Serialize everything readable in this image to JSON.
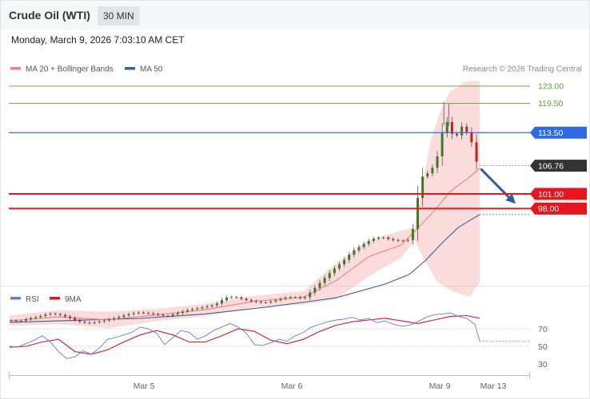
{
  "header": {
    "title": "Crude Oil (WTI)",
    "timeframe": "30 MIN",
    "timestamp": "Monday, March 9, 2026 7:03:10 AM CET"
  },
  "copyright": "Research © 2026 Trading Central",
  "colors": {
    "resistance_green": "#5aa532",
    "pivot_blue": "#2d6be4",
    "support_red": "#e8141e",
    "current_price": "#333333",
    "ma20_band": "#f08080",
    "ma50": "#3a5f9e",
    "rsi": "#5b7fe0",
    "rsi_ma": "#e8141e",
    "arrow": "#2d5fa5"
  },
  "chart_data": [
    {
      "type": "line",
      "kind": "candlestick",
      "legend": [
        {
          "name": "MA 20 + Bollinger Bands",
          "color": "#f08080"
        },
        {
          "name": "MA 50",
          "color": "#3a5f9e"
        }
      ],
      "legend_position": "top-left",
      "levels": [
        {
          "value": "123.00",
          "role": "resistance",
          "color": "#5aa532"
        },
        {
          "value": "119.50",
          "role": "resistance",
          "color": "#5aa532"
        },
        {
          "value": "113.50",
          "role": "pivot",
          "color": "#2d6be4"
        },
        {
          "value": "106.76",
          "role": "current",
          "color": "#333333"
        },
        {
          "value": "101.00",
          "role": "support",
          "color": "#e8141e"
        },
        {
          "value": "98.00",
          "role": "support",
          "color": "#e8141e"
        }
      ],
      "x_ticks": [
        "Mar 5",
        "Mar 6",
        "Mar 9",
        "Mar 13"
      ],
      "price_path": [
        [
          0,
          75.2
        ],
        [
          6,
          75.0
        ],
        [
          12,
          75.6
        ],
        [
          18,
          76.0
        ],
        [
          24,
          76.6
        ],
        [
          30,
          76.4
        ],
        [
          36,
          75.8
        ],
        [
          42,
          75.0
        ],
        [
          48,
          74.6
        ],
        [
          54,
          74.9
        ],
        [
          60,
          75.3
        ],
        [
          66,
          75.8
        ],
        [
          72,
          76.4
        ],
        [
          78,
          76.8
        ],
        [
          84,
          76.7
        ],
        [
          90,
          76.4
        ],
        [
          96,
          76.0
        ],
        [
          102,
          76.6
        ],
        [
          108,
          77.2
        ],
        [
          114,
          77.6
        ],
        [
          120,
          78.0
        ],
        [
          126,
          78.4
        ],
        [
          132,
          79.8
        ],
        [
          138,
          80.0
        ],
        [
          144,
          79.4
        ],
        [
          150,
          79.0
        ],
        [
          156,
          78.8
        ],
        [
          162,
          79.2
        ],
        [
          168,
          79.8
        ],
        [
          174,
          80.0
        ],
        [
          180,
          79.6
        ],
        [
          186,
          81.5
        ],
        [
          192,
          83.5
        ],
        [
          198,
          85.5
        ],
        [
          204,
          87.2
        ],
        [
          210,
          89.3
        ],
        [
          216,
          90.6
        ],
        [
          222,
          91.8
        ],
        [
          228,
          92.2
        ],
        [
          234,
          91.6
        ],
        [
          240,
          91.4
        ],
        [
          246,
          91.7
        ],
        [
          252,
          104.4
        ],
        [
          255,
          104.8
        ],
        [
          258,
          106.0
        ],
        [
          261,
          107.0
        ],
        [
          264,
          112.0
        ],
        [
          267,
          116.5
        ],
        [
          270,
          114.0
        ],
        [
          273,
          111.8
        ],
        [
          276,
          115.2
        ],
        [
          279,
          113.8
        ],
        [
          282,
          113.3
        ],
        [
          285,
          108.0
        ],
        [
          288,
          106.8
        ]
      ],
      "ma20_path": [
        [
          0,
          75.1
        ],
        [
          30,
          75.9
        ],
        [
          60,
          75.3
        ],
        [
          90,
          76.3
        ],
        [
          120,
          77.4
        ],
        [
          150,
          79.1
        ],
        [
          180,
          79.9
        ],
        [
          200,
          83.3
        ],
        [
          220,
          88.2
        ],
        [
          240,
          90.6
        ],
        [
          250,
          94.0
        ],
        [
          260,
          97.5
        ],
        [
          270,
          101.5
        ],
        [
          280,
          104.0
        ],
        [
          288,
          106.2
        ]
      ],
      "ma50_path": [
        [
          0,
          74.8
        ],
        [
          40,
          75.2
        ],
        [
          80,
          75.6
        ],
        [
          120,
          76.5
        ],
        [
          160,
          78.0
        ],
        [
          200,
          79.8
        ],
        [
          230,
          82.6
        ],
        [
          245,
          84.6
        ],
        [
          255,
          87.5
        ],
        [
          265,
          91.0
        ],
        [
          275,
          94.2
        ],
        [
          288,
          96.8
        ]
      ],
      "band_upper": [
        [
          0,
          76.2
        ],
        [
          30,
          77.3
        ],
        [
          60,
          77.0
        ],
        [
          90,
          77.5
        ],
        [
          120,
          78.6
        ],
        [
          150,
          80.2
        ],
        [
          180,
          81.2
        ],
        [
          200,
          86.8
        ],
        [
          220,
          91.6
        ],
        [
          240,
          93.5
        ],
        [
          248,
          94.2
        ],
        [
          252,
          101.0
        ],
        [
          258,
          112.0
        ],
        [
          264,
          118.0
        ],
        [
          270,
          122.0
        ],
        [
          280,
          124.0
        ],
        [
          288,
          124.0
        ]
      ],
      "band_lower": [
        [
          0,
          74.1
        ],
        [
          30,
          74.4
        ],
        [
          60,
          73.6
        ],
        [
          90,
          75.0
        ],
        [
          120,
          76.1
        ],
        [
          150,
          77.9
        ],
        [
          180,
          78.4
        ],
        [
          200,
          79.5
        ],
        [
          220,
          84.2
        ],
        [
          240,
          88.0
        ],
        [
          248,
          91.5
        ],
        [
          255,
          87.0
        ],
        [
          262,
          83.0
        ],
        [
          272,
          81.0
        ],
        [
          282,
          80.0
        ],
        [
          288,
          83.0
        ]
      ],
      "projection": {
        "from": [
          289,
          106.0
        ],
        "to": [
          310,
          99.0
        ]
      }
    },
    {
      "type": "line",
      "legend": [
        {
          "name": "RSI",
          "color": "#5b7fe0"
        },
        {
          "name": "9MA",
          "color": "#e8141e"
        }
      ],
      "legend_position": "top-left",
      "y_ticks": [
        "70",
        "50",
        "30"
      ],
      "rsi": [
        [
          0,
          50
        ],
        [
          5,
          49
        ],
        [
          10,
          53
        ],
        [
          15,
          57
        ],
        [
          20,
          62
        ],
        [
          25,
          55
        ],
        [
          30,
          44
        ],
        [
          35,
          36
        ],
        [
          40,
          38
        ],
        [
          45,
          45
        ],
        [
          50,
          41
        ],
        [
          55,
          48
        ],
        [
          60,
          58
        ],
        [
          65,
          60
        ],
        [
          70,
          63
        ],
        [
          75,
          66
        ],
        [
          80,
          72
        ],
        [
          85,
          70
        ],
        [
          90,
          65
        ],
        [
          95,
          52
        ],
        [
          100,
          60
        ],
        [
          105,
          68
        ],
        [
          110,
          66
        ],
        [
          115,
          58
        ],
        [
          120,
          62
        ],
        [
          125,
          68
        ],
        [
          130,
          72
        ],
        [
          135,
          76
        ],
        [
          140,
          72
        ],
        [
          145,
          65
        ],
        [
          150,
          52
        ],
        [
          155,
          51
        ],
        [
          160,
          54
        ],
        [
          165,
          58
        ],
        [
          170,
          56
        ],
        [
          175,
          62
        ],
        [
          180,
          66
        ],
        [
          185,
          72
        ],
        [
          190,
          75
        ],
        [
          195,
          78
        ],
        [
          200,
          80
        ],
        [
          205,
          81
        ],
        [
          210,
          83
        ],
        [
          215,
          80
        ],
        [
          220,
          82
        ],
        [
          225,
          77
        ],
        [
          230,
          79
        ],
        [
          235,
          75
        ],
        [
          240,
          73
        ],
        [
          245,
          74
        ],
        [
          250,
          78
        ],
        [
          255,
          83
        ],
        [
          260,
          86
        ],
        [
          265,
          87
        ],
        [
          270,
          88
        ],
        [
          275,
          84
        ],
        [
          280,
          82
        ],
        [
          285,
          75
        ],
        [
          288,
          56
        ]
      ],
      "rsi_ma": [
        [
          0,
          49
        ],
        [
          10,
          50
        ],
        [
          20,
          55
        ],
        [
          30,
          58
        ],
        [
          40,
          44
        ],
        [
          50,
          41
        ],
        [
          60,
          46
        ],
        [
          70,
          55
        ],
        [
          80,
          63
        ],
        [
          90,
          68
        ],
        [
          100,
          63
        ],
        [
          110,
          55
        ],
        [
          120,
          55
        ],
        [
          130,
          62
        ],
        [
          140,
          70
        ],
        [
          150,
          67
        ],
        [
          160,
          57
        ],
        [
          170,
          53
        ],
        [
          180,
          58
        ],
        [
          190,
          67
        ],
        [
          200,
          74
        ],
        [
          210,
          78
        ],
        [
          220,
          80
        ],
        [
          230,
          82
        ],
        [
          240,
          79
        ],
        [
          250,
          76
        ],
        [
          260,
          80
        ],
        [
          270,
          84
        ],
        [
          280,
          85
        ],
        [
          288,
          82
        ]
      ],
      "rsi_last": 56,
      "ylim": [
        20,
        90
      ]
    }
  ]
}
